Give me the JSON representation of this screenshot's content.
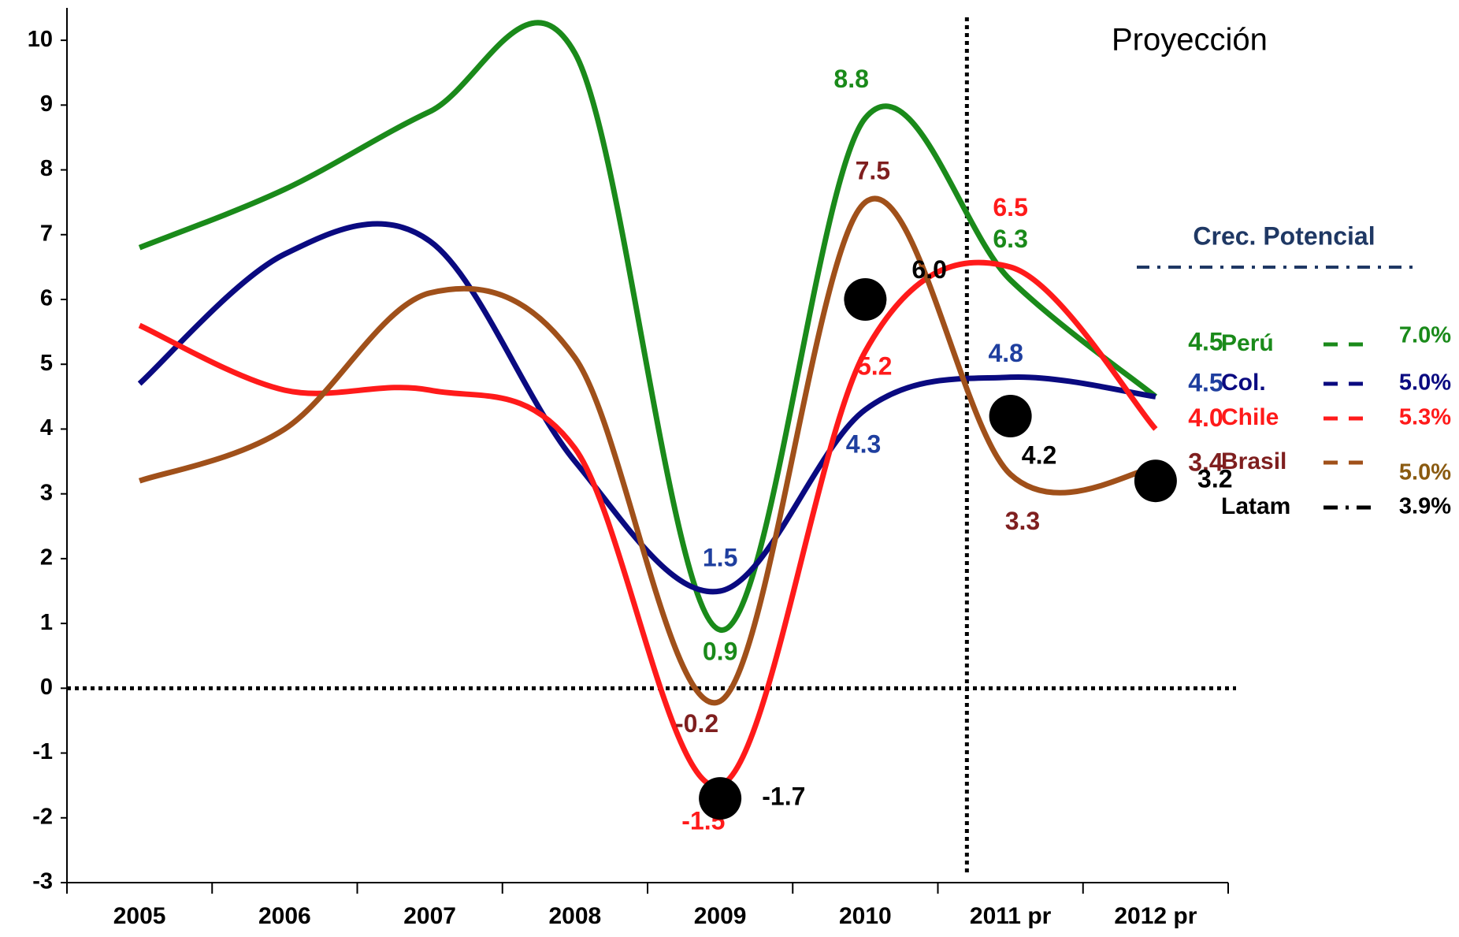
{
  "chart_data": {
    "type": "line",
    "annotation": "Proyección",
    "legend_title": "Crec. Potencial",
    "categories": [
      "2005",
      "2006",
      "2007",
      "2008",
      "2009",
      "2010",
      "2011 pr",
      "2012 pr"
    ],
    "ylim": [
      -3,
      10.5
    ],
    "yticks": [
      -3,
      -2,
      -1,
      0,
      1,
      2,
      3,
      4,
      5,
      6,
      7,
      8,
      9,
      10
    ],
    "series": [
      {
        "name": "Perú",
        "color": "#1a8a1a",
        "label_color": "#1a8a1a",
        "values": [
          6.8,
          7.7,
          8.9,
          9.8,
          0.9,
          8.8,
          6.3,
          4.5
        ],
        "value_labels": [
          null,
          null,
          null,
          null,
          "0.9",
          "8.8",
          "6.3",
          "4.5"
        ],
        "potential": 7.0,
        "potential_label": "7.0%"
      },
      {
        "name": "Col.",
        "color": "#0a0a80",
        "label_color": "#1f3f9f",
        "values": [
          4.7,
          6.7,
          6.9,
          3.5,
          1.5,
          4.3,
          4.8,
          4.5
        ],
        "value_labels": [
          null,
          null,
          null,
          null,
          "1.5",
          "4.3",
          "4.8",
          "4.5"
        ],
        "potential": 5.0,
        "potential_label": "5.0%"
      },
      {
        "name": "Chile",
        "color": "#ff1a1a",
        "label_color": "#ff1a1a",
        "values": [
          5.6,
          4.6,
          4.6,
          3.7,
          -1.5,
          5.2,
          6.5,
          4.0
        ],
        "value_labels": [
          null,
          null,
          null,
          null,
          "-1.5",
          "5.2",
          "6.5",
          "4.0"
        ],
        "potential": 5.3,
        "potential_label": "5.3%"
      },
      {
        "name": "Brasil",
        "color": "#a0501a",
        "label_color": "#7f1f1f",
        "values": [
          3.2,
          4.0,
          6.1,
          5.1,
          -0.2,
          7.5,
          3.3,
          3.4
        ],
        "value_labels": [
          null,
          null,
          null,
          null,
          "-0.2",
          "7.5",
          "3.3",
          "3.4"
        ],
        "potential": 5.0,
        "potential_label": "5.0%"
      },
      {
        "name": "Latam",
        "color": "#000000",
        "label_color": "#000000",
        "markers_only": true,
        "values": [
          null,
          null,
          null,
          null,
          -1.7,
          6.0,
          4.2,
          3.2
        ],
        "value_labels": [
          null,
          null,
          null,
          null,
          "-1.7",
          "6.0",
          "4.2",
          "3.2"
        ],
        "potential": 3.9,
        "potential_label": "3.9%"
      }
    ]
  }
}
